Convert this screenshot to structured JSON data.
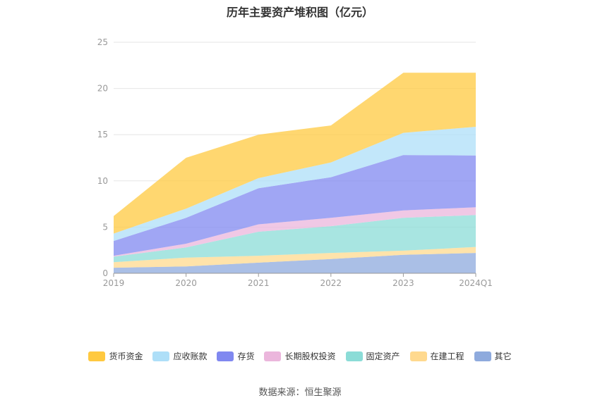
{
  "chart_data": {
    "type": "area",
    "stacked": true,
    "title": "历年主要资产堆积图（亿元）",
    "categories": [
      "2019",
      "2020",
      "2021",
      "2022",
      "2023",
      "2024Q1"
    ],
    "ylim": [
      0,
      25
    ],
    "yticks": [
      0,
      5,
      10,
      15,
      20,
      25
    ],
    "grid": true,
    "legend_position": "bottom",
    "series": [
      {
        "name": "其它",
        "color": "#8eaadd",
        "values": [
          0.6,
          0.75,
          1.15,
          1.55,
          2.0,
          2.2
        ]
      },
      {
        "name": "在建工程",
        "color": "#ffd98e",
        "values": [
          0.6,
          0.95,
          0.75,
          0.65,
          0.45,
          0.65
        ]
      },
      {
        "name": "固定资产",
        "color": "#8bdcd7",
        "values": [
          0.6,
          1.1,
          2.6,
          2.9,
          3.55,
          3.45
        ]
      },
      {
        "name": "长期股权投资",
        "color": "#ebb6dc",
        "values": [
          0.1,
          0.4,
          0.8,
          0.9,
          0.8,
          0.85
        ]
      },
      {
        "name": "存货",
        "color": "#8088f0",
        "values": [
          1.6,
          2.8,
          3.9,
          4.4,
          6.0,
          5.6
        ]
      },
      {
        "name": "应收账款",
        "color": "#aedff8",
        "values": [
          0.8,
          1.0,
          1.1,
          1.6,
          2.4,
          3.1
        ]
      },
      {
        "name": "货币资金",
        "color": "#ffc940",
        "values": [
          1.9,
          5.5,
          4.7,
          4.0,
          6.5,
          5.85
        ]
      }
    ],
    "legend_order": [
      "货币资金",
      "应收账款",
      "存货",
      "长期股权投资",
      "固定资产",
      "在建工程",
      "其它"
    ],
    "source": "数据来源：恒生聚源"
  }
}
